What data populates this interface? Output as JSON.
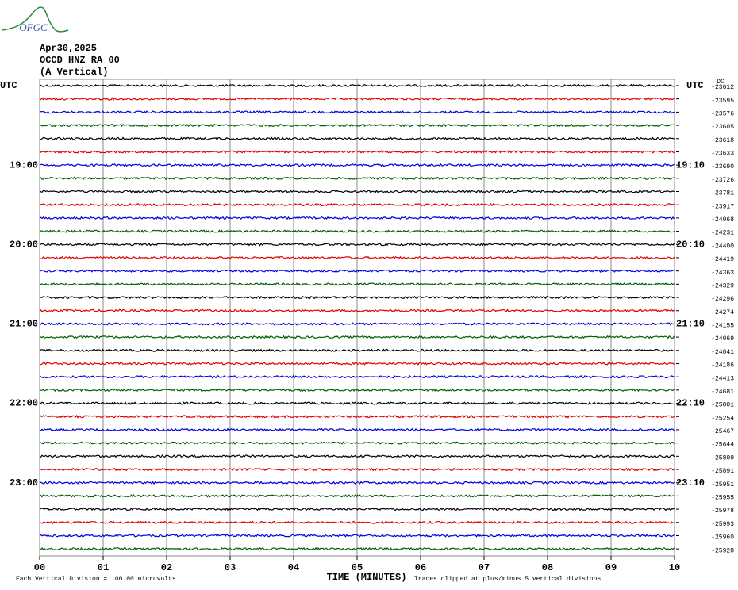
{
  "logo": "OFGC",
  "header": {
    "date": "Apr30,2025",
    "station": "OCCD HNZ RA 00",
    "component": "(A Vertical)"
  },
  "dc_label": "DC",
  "left_labels": [
    "UTC",
    "19:00",
    "20:00",
    "21:00",
    "22:00",
    "23:00"
  ],
  "right_labels": [
    "UTC",
    "19:10",
    "20:10",
    "21:10",
    "22:10",
    "23:10"
  ],
  "trace_colors": [
    "#000000",
    "#e00000",
    "#0000e0",
    "#006000"
  ],
  "offsets": [
    "-23612",
    "-23595",
    "-23576",
    "-23605",
    "-23618",
    "-23633",
    "-23690",
    "-23726",
    "-23781",
    "-23917",
    "-24068",
    "-24231",
    "-24400",
    "-24419",
    "-24363",
    "-24329",
    "-24296",
    "-24274",
    "-24155",
    "-24069",
    "-24041",
    "-24186",
    "-24413",
    "-24681",
    "-25001",
    "-25254",
    "-25467",
    "-25644",
    "-25809",
    "-25891",
    "-25951",
    "-25955",
    "-25978",
    "-25993",
    "-25960",
    "-25928"
  ],
  "x_ticks": [
    "00",
    "01",
    "02",
    "03",
    "04",
    "05",
    "06",
    "07",
    "08",
    "09",
    "10"
  ],
  "footer": {
    "scale": "Each Vertical Division =  100.00 microvolts",
    "axis_title": "TIME (MINUTES)",
    "clip_note": "Traces clipped at plus/minus 5 vertical divisions"
  }
}
